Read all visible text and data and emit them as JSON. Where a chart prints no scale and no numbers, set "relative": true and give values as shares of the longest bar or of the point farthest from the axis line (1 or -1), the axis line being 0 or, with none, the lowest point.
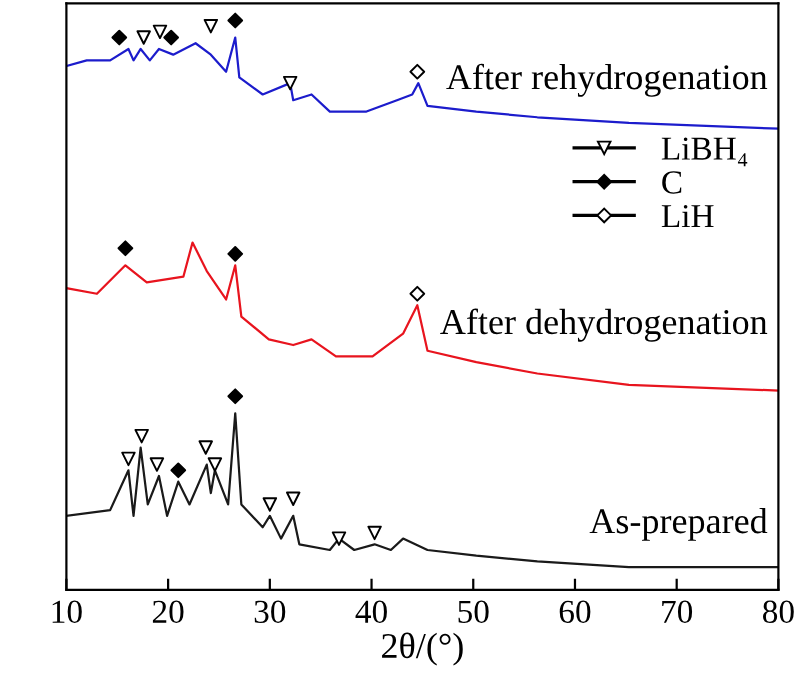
{
  "chart_data": {
    "type": "line",
    "relative": true,
    "xlabel": "2θ/(°)",
    "xlim": [
      10,
      80
    ],
    "xticks": [
      10,
      20,
      30,
      40,
      50,
      60,
      70,
      80
    ],
    "grid": false,
    "legend": "right",
    "tick_labels": "x",
    "series": [
      {
        "color": "#1c1ccc",
        "x": [
          10,
          12,
          14.3,
          16.1,
          16.6,
          17.3,
          18.2,
          19.1,
          20.5,
          22.7,
          24.2,
          25.7,
          26.6,
          27,
          29.3,
          32,
          32.3,
          34.1,
          35.9,
          39.5,
          42.5,
          44,
          44.6,
          45.5,
          50.3,
          56.3,
          65.3,
          80
        ],
        "values": [
          0.92,
          0.93,
          0.93,
          0.95,
          0.93,
          0.95,
          0.93,
          0.95,
          0.94,
          0.96,
          0.94,
          0.91,
          0.97,
          0.9,
          0.87,
          0.89,
          0.86,
          0.87,
          0.84,
          0.84,
          0.86,
          0.87,
          0.89,
          0.85,
          0.84,
          0.83,
          0.82,
          0.81
        ]
      },
      {
        "color": "#e8141e",
        "x": [
          10,
          13,
          15.8,
          17.9,
          21.5,
          22.4,
          23.8,
          25.7,
          26.6,
          27.2,
          29.9,
          32.3,
          34.1,
          36.5,
          40.1,
          43.1,
          44.5,
          45.5,
          50.3,
          56.3,
          65.3,
          80
        ],
        "values": [
          0.53,
          0.52,
          0.57,
          0.54,
          0.55,
          0.61,
          0.56,
          0.51,
          0.57,
          0.48,
          0.44,
          0.43,
          0.44,
          0.41,
          0.41,
          0.45,
          0.5,
          0.42,
          0.4,
          0.38,
          0.36,
          0.35
        ]
      },
      {
        "color": "#1a1a1a",
        "x": [
          10,
          14.3,
          16.1,
          16.6,
          17.3,
          18.0,
          19.1,
          19.9,
          21.0,
          22.1,
          23.8,
          24.2,
          24.6,
          25.9,
          26.6,
          27.2,
          29.3,
          30.0,
          31.1,
          32.3,
          32.9,
          35.9,
          36.8,
          38.3,
          40.3,
          41.9,
          43.1,
          45.5,
          50.3,
          56.3,
          65.3,
          80
        ],
        "values": [
          0.13,
          0.14,
          0.21,
          0.13,
          0.25,
          0.15,
          0.2,
          0.13,
          0.19,
          0.15,
          0.22,
          0.17,
          0.21,
          0.15,
          0.31,
          0.15,
          0.11,
          0.13,
          0.09,
          0.13,
          0.08,
          0.07,
          0.09,
          0.07,
          0.08,
          0.07,
          0.09,
          0.07,
          0.06,
          0.05,
          0.04,
          0.04
        ]
      },
      {
        "type": "scatter",
        "name": "LiBH₄",
        "marker": "triangle",
        "color": "#ffffff",
        "x": [
          17.6,
          19.2,
          24.2,
          32,
          16.1,
          17.4,
          18.9,
          23.7,
          24.6,
          30,
          32.3,
          36.8,
          40.3
        ],
        "values": [
          0.97,
          0.98,
          0.99,
          0.89,
          0.23,
          0.27,
          0.22,
          0.25,
          0.22,
          0.15,
          0.16,
          0.09,
          0.1
        ]
      },
      {
        "type": "scatter",
        "name": "C",
        "marker": "diamond",
        "color": "#000000",
        "x": [
          15.2,
          20.3,
          26.6,
          15.8,
          26.6,
          21.0,
          26.6
        ],
        "values": [
          0.97,
          0.97,
          1.0,
          0.6,
          0.59,
          0.21,
          0.34
        ]
      },
      {
        "type": "scatter",
        "name": "LiH",
        "marker": "diamond",
        "color": "#ffffff",
        "x": [
          44.5,
          44.5
        ],
        "values": [
          0.91,
          0.52
        ]
      }
    ],
    "annotations": [
      "After rehydrogenation",
      "After dehydrogenation",
      "As-prepared"
    ]
  }
}
